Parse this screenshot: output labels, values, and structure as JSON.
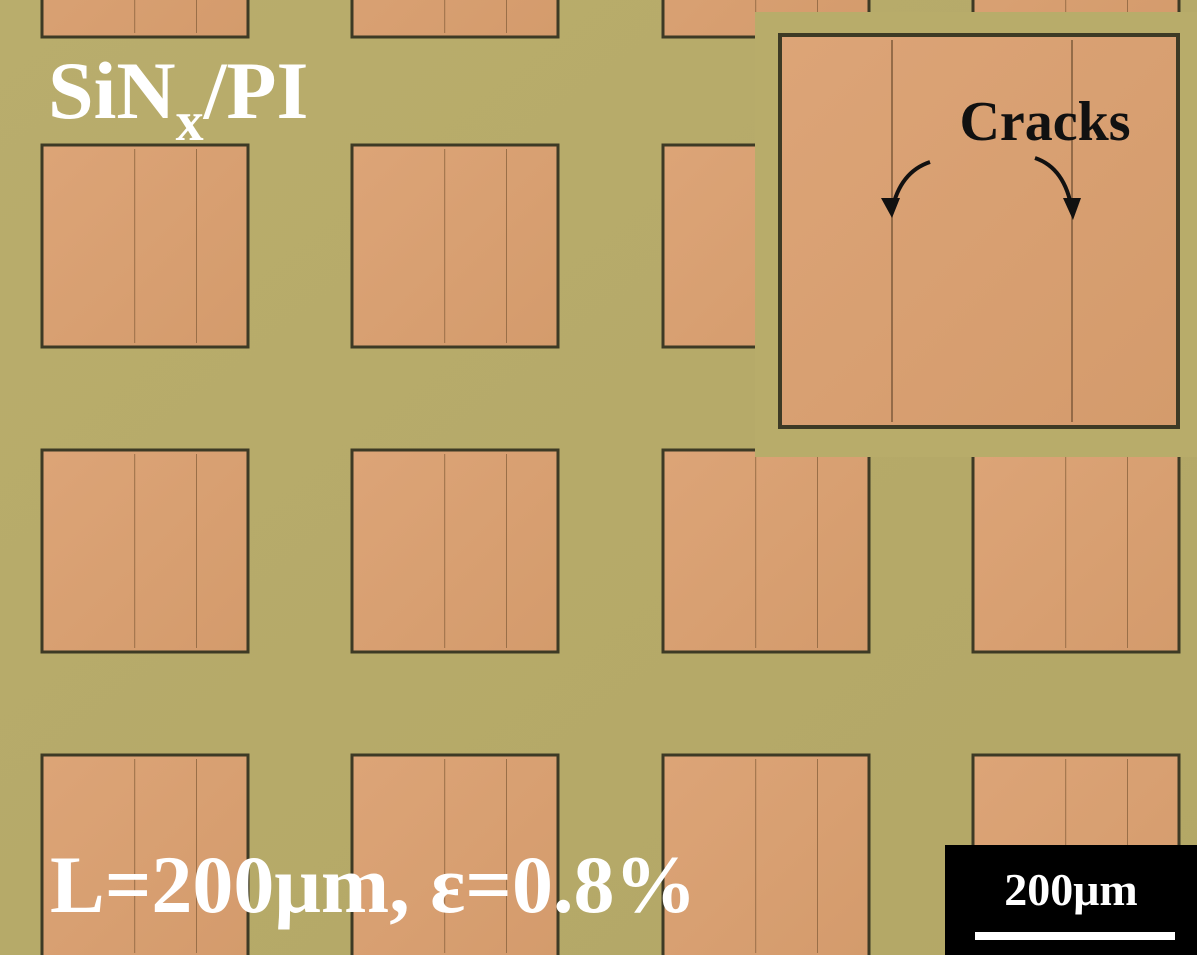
{
  "labels": {
    "sample": {
      "main": "SiN",
      "subscript": "x",
      "suffix": "/PI"
    },
    "conditions": "L=200μm, ε=0.8%",
    "inset_annotation": "Cracks",
    "scale_bar": "200μm"
  }
}
